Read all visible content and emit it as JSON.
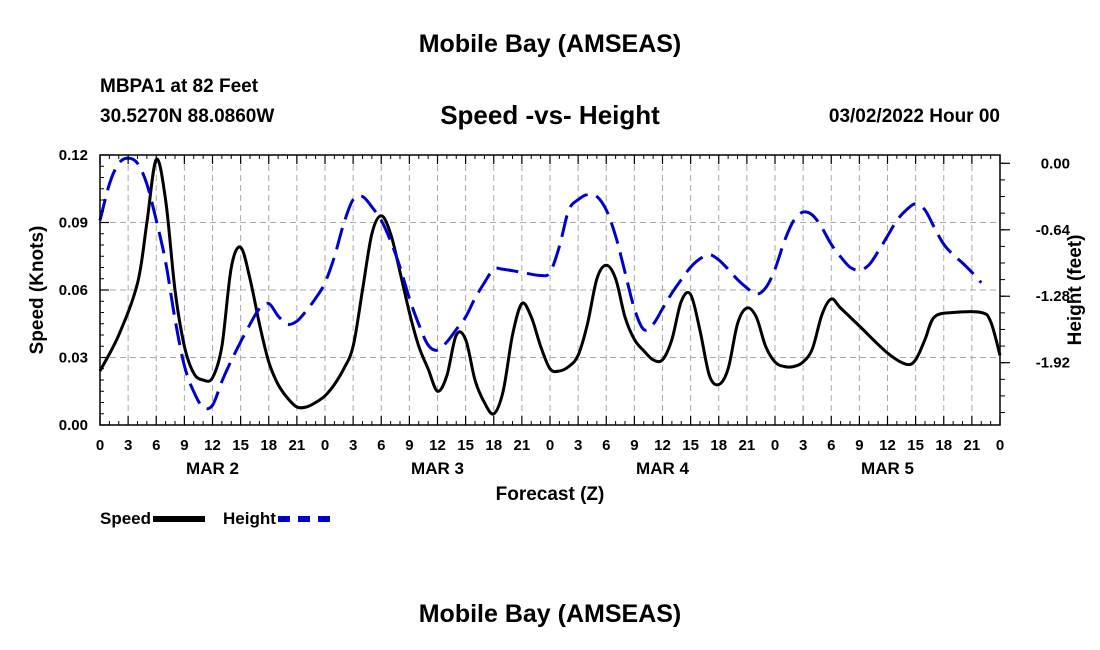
{
  "header": {
    "title": "Mobile Bay (AMSEAS)",
    "station": "MBPA1 at 82 Feet",
    "coords": "30.5270N  88.0860W",
    "subtitle": "Speed -vs- Height",
    "datetime": "03/02/2022 Hour 00"
  },
  "footer": {
    "title": "Mobile Bay (AMSEAS)"
  },
  "legend": {
    "speed_label": "Speed",
    "height_label": "Height"
  },
  "chart_data": {
    "type": "line",
    "title": "Speed -vs- Height",
    "xlabel": "Forecast (Z)",
    "ylabel": "Speed (Knots)",
    "y2label": "Height (feet)",
    "xlim": [
      0,
      96
    ],
    "ylim": [
      0,
      0.12
    ],
    "y2lim": [
      -2.52,
      0.08
    ],
    "x_ticks": [
      0,
      3,
      6,
      9,
      12,
      15,
      18,
      21,
      24,
      27,
      30,
      33,
      36,
      39,
      42,
      45,
      48,
      51,
      54,
      57,
      60,
      63,
      66,
      69,
      72,
      75,
      78,
      81,
      84,
      87,
      90,
      93,
      96
    ],
    "x_tick_labels": [
      "0",
      "3",
      "6",
      "9",
      "12",
      "15",
      "18",
      "21",
      "0",
      "3",
      "6",
      "9",
      "12",
      "15",
      "18",
      "21",
      "0",
      "3",
      "6",
      "9",
      "12",
      "15",
      "18",
      "21",
      "0",
      "3",
      "6",
      "9",
      "12",
      "15",
      "18",
      "21",
      "0"
    ],
    "day_labels": [
      {
        "label": "MAR 2",
        "x": 12
      },
      {
        "label": "MAR 3",
        "x": 36
      },
      {
        "label": "MAR 4",
        "x": 60
      },
      {
        "label": "MAR 5",
        "x": 84
      }
    ],
    "y_ticks": [
      0.0,
      0.03,
      0.06,
      0.09,
      0.12
    ],
    "y_tick_labels": [
      "0.00",
      "0.03",
      "0.06",
      "0.09",
      "0.12"
    ],
    "y2_ticks": [
      0.0,
      -0.64,
      -1.28,
      -1.92
    ],
    "y2_tick_labels": [
      "0.00",
      "-0.64",
      "-1.28",
      "-1.92"
    ],
    "grid": true,
    "series": [
      {
        "name": "Speed",
        "axis": "left",
        "color": "#000000",
        "style": "solid",
        "points": [
          [
            0,
            0.024
          ],
          [
            2,
            0.04
          ],
          [
            4,
            0.063
          ],
          [
            5,
            0.09
          ],
          [
            6,
            0.118
          ],
          [
            7,
            0.1
          ],
          [
            8,
            0.06
          ],
          [
            9,
            0.035
          ],
          [
            10,
            0.023
          ],
          [
            11,
            0.02
          ],
          [
            12,
            0.021
          ],
          [
            13,
            0.035
          ],
          [
            14,
            0.07
          ],
          [
            15,
            0.079
          ],
          [
            16,
            0.065
          ],
          [
            17,
            0.045
          ],
          [
            18,
            0.028
          ],
          [
            19,
            0.018
          ],
          [
            20,
            0.012
          ],
          [
            21,
            0.008
          ],
          [
            22,
            0.008
          ],
          [
            23,
            0.01
          ],
          [
            24,
            0.013
          ],
          [
            25,
            0.018
          ],
          [
            26,
            0.025
          ],
          [
            27,
            0.035
          ],
          [
            28,
            0.06
          ],
          [
            29,
            0.085
          ],
          [
            30,
            0.093
          ],
          [
            31,
            0.085
          ],
          [
            32,
            0.068
          ],
          [
            33,
            0.05
          ],
          [
            34,
            0.035
          ],
          [
            35,
            0.025
          ],
          [
            36,
            0.015
          ],
          [
            37,
            0.022
          ],
          [
            38,
            0.04
          ],
          [
            39,
            0.038
          ],
          [
            40,
            0.02
          ],
          [
            41,
            0.01
          ],
          [
            42,
            0.005
          ],
          [
            43,
            0.015
          ],
          [
            44,
            0.04
          ],
          [
            45,
            0.054
          ],
          [
            46,
            0.048
          ],
          [
            47,
            0.035
          ],
          [
            48,
            0.025
          ],
          [
            49,
            0.024
          ],
          [
            50,
            0.026
          ],
          [
            51,
            0.031
          ],
          [
            52,
            0.045
          ],
          [
            53,
            0.065
          ],
          [
            54,
            0.071
          ],
          [
            55,
            0.065
          ],
          [
            56,
            0.048
          ],
          [
            57,
            0.038
          ],
          [
            58,
            0.033
          ],
          [
            59,
            0.029
          ],
          [
            60,
            0.029
          ],
          [
            61,
            0.038
          ],
          [
            62,
            0.055
          ],
          [
            63,
            0.058
          ],
          [
            64,
            0.042
          ],
          [
            65,
            0.022
          ],
          [
            66,
            0.018
          ],
          [
            67,
            0.025
          ],
          [
            68,
            0.045
          ],
          [
            69,
            0.052
          ],
          [
            70,
            0.048
          ],
          [
            71,
            0.035
          ],
          [
            72,
            0.028
          ],
          [
            73,
            0.026
          ],
          [
            74,
            0.026
          ],
          [
            75,
            0.028
          ],
          [
            76,
            0.034
          ],
          [
            77,
            0.049
          ],
          [
            78,
            0.056
          ],
          [
            79,
            0.052
          ],
          [
            81,
            0.044
          ],
          [
            84,
            0.032
          ],
          [
            86,
            0.027
          ],
          [
            87,
            0.029
          ],
          [
            88,
            0.038
          ],
          [
            89,
            0.048
          ],
          [
            91,
            0.05
          ],
          [
            94,
            0.05
          ],
          [
            95,
            0.046
          ],
          [
            96,
            0.031
          ]
        ]
      },
      {
        "name": "Height",
        "axis": "right",
        "color": "#0000cc",
        "style": "dashed",
        "points": [
          [
            0,
            -0.55
          ],
          [
            1,
            -0.2
          ],
          [
            2,
            0.0
          ],
          [
            3,
            0.05
          ],
          [
            4,
            0.0
          ],
          [
            5,
            -0.2
          ],
          [
            6,
            -0.55
          ],
          [
            7,
            -0.95
          ],
          [
            8,
            -1.5
          ],
          [
            9,
            -1.95
          ],
          [
            10,
            -2.2
          ],
          [
            11,
            -2.35
          ],
          [
            12,
            -2.33
          ],
          [
            13,
            -2.1
          ],
          [
            14,
            -1.9
          ],
          [
            15,
            -1.72
          ],
          [
            16,
            -1.55
          ],
          [
            17,
            -1.4
          ],
          [
            18,
            -1.35
          ],
          [
            19,
            -1.47
          ],
          [
            20,
            -1.55
          ],
          [
            21,
            -1.52
          ],
          [
            22,
            -1.42
          ],
          [
            23,
            -1.3
          ],
          [
            24,
            -1.15
          ],
          [
            25,
            -0.9
          ],
          [
            26,
            -0.58
          ],
          [
            27,
            -0.35
          ],
          [
            28,
            -0.32
          ],
          [
            29,
            -0.42
          ],
          [
            30,
            -0.55
          ],
          [
            31,
            -0.75
          ],
          [
            32,
            -1.0
          ],
          [
            33,
            -1.3
          ],
          [
            34,
            -1.55
          ],
          [
            35,
            -1.75
          ],
          [
            36,
            -1.8
          ],
          [
            37,
            -1.72
          ],
          [
            38,
            -1.6
          ],
          [
            39,
            -1.48
          ],
          [
            40,
            -1.3
          ],
          [
            41,
            -1.15
          ],
          [
            42,
            -1.02
          ],
          [
            43,
            -1.02
          ],
          [
            45,
            -1.05
          ],
          [
            47,
            -1.08
          ],
          [
            48,
            -1.05
          ],
          [
            49,
            -0.8
          ],
          [
            50,
            -0.45
          ],
          [
            51,
            -0.35
          ],
          [
            52,
            -0.3
          ],
          [
            53,
            -0.32
          ],
          [
            54,
            -0.45
          ],
          [
            55,
            -0.7
          ],
          [
            56,
            -1.05
          ],
          [
            57,
            -1.4
          ],
          [
            58,
            -1.6
          ],
          [
            59,
            -1.55
          ],
          [
            60,
            -1.4
          ],
          [
            61,
            -1.25
          ],
          [
            62,
            -1.12
          ],
          [
            63,
            -1.0
          ],
          [
            64,
            -0.92
          ],
          [
            65,
            -0.88
          ],
          [
            66,
            -0.93
          ],
          [
            67,
            -1.02
          ],
          [
            68,
            -1.12
          ],
          [
            69,
            -1.2
          ],
          [
            70,
            -1.26
          ],
          [
            71,
            -1.2
          ],
          [
            72,
            -1.02
          ],
          [
            73,
            -0.75
          ],
          [
            74,
            -0.55
          ],
          [
            75,
            -0.47
          ],
          [
            76,
            -0.5
          ],
          [
            77,
            -0.62
          ],
          [
            78,
            -0.78
          ],
          [
            79,
            -0.9
          ],
          [
            80,
            -1.0
          ],
          [
            81,
            -1.03
          ],
          [
            82,
            -0.98
          ],
          [
            83,
            -0.85
          ],
          [
            84,
            -0.7
          ],
          [
            85,
            -0.55
          ],
          [
            86,
            -0.45
          ],
          [
            87,
            -0.39
          ],
          [
            88,
            -0.45
          ],
          [
            89,
            -0.62
          ],
          [
            90,
            -0.78
          ],
          [
            91,
            -0.88
          ],
          [
            92,
            -0.96
          ],
          [
            93,
            -1.05
          ],
          [
            94,
            -1.15
          ]
        ]
      }
    ]
  }
}
